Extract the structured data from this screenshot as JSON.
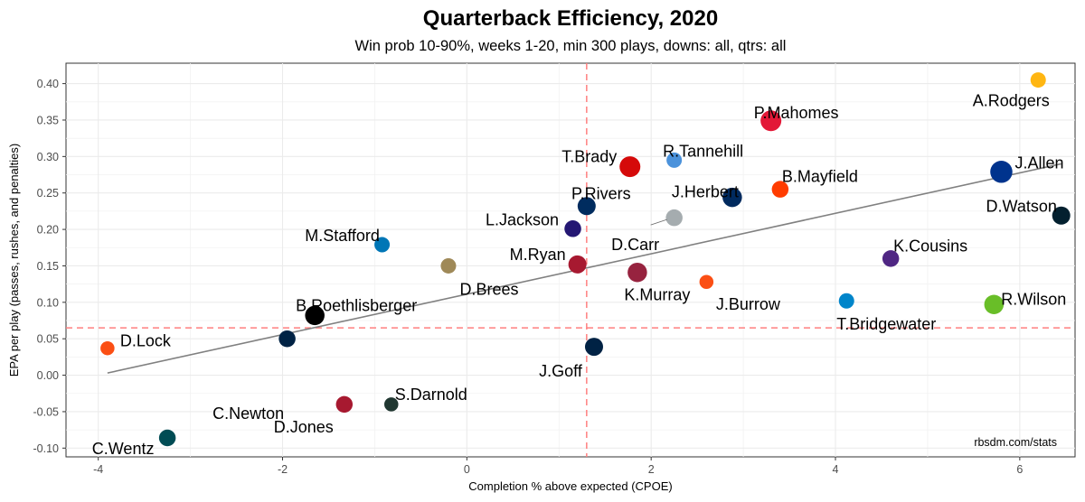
{
  "chart_data": {
    "type": "scatter",
    "title": "Quarterback Efficiency, 2020",
    "subtitle": "Win prob 10-90%, weeks 1-20, min 300 plays, downs: all, qtrs: all",
    "xlabel": "Completion % above expected (CPOE)",
    "ylabel": "EPA per play (passes, rushes, and penalties)",
    "caption": "rbsdm.com/stats",
    "xlim": [
      -4.35,
      6.6
    ],
    "ylim": [
      -0.112,
      0.428
    ],
    "xticks": [
      -4,
      -2,
      0,
      2,
      4,
      6
    ],
    "xtick_labels": [
      "-4",
      "-2",
      "0",
      "2",
      "4",
      "6"
    ],
    "yticks": [
      -0.1,
      -0.05,
      0.0,
      0.05,
      0.1,
      0.15,
      0.2,
      0.25,
      0.3,
      0.35,
      0.4
    ],
    "ytick_labels": [
      "-0.10",
      "-0.05",
      "0.00",
      "0.05",
      "0.10",
      "0.15",
      "0.20",
      "0.25",
      "0.30",
      "0.35",
      "0.40"
    ],
    "mean_x": 1.3,
    "mean_y": 0.065,
    "trend_line": {
      "x1": -3.9,
      "y1": 0.003,
      "x2": 6.45,
      "y2": 0.29
    },
    "points": [
      {
        "name": "A.Rodgers",
        "x": 6.2,
        "y": 0.405,
        "size": 6,
        "color": "#FFB612"
      },
      {
        "name": "P.Mahomes",
        "x": 3.3,
        "y": 0.349,
        "size": 10,
        "color": "#E31837"
      },
      {
        "name": "R.Tannehill",
        "x": 2.25,
        "y": 0.295,
        "size": 6,
        "color": "#4B92DB"
      },
      {
        "name": "T.Brady",
        "x": 1.77,
        "y": 0.286,
        "size": 10,
        "color": "#D50A0A"
      },
      {
        "name": "J.Allen",
        "x": 5.8,
        "y": 0.279,
        "size": 11,
        "color": "#00338D"
      },
      {
        "name": "B.Mayfield",
        "x": 3.4,
        "y": 0.255,
        "size": 7,
        "color": "#FF3C00"
      },
      {
        "name": "J.Herbert",
        "x": 2.88,
        "y": 0.244,
        "size": 9,
        "color": "#002A5E"
      },
      {
        "name": "P.Rivers",
        "x": 1.3,
        "y": 0.232,
        "size": 8,
        "color": "#002C5F"
      },
      {
        "name": "D.Watson",
        "x": 6.45,
        "y": 0.219,
        "size": 8,
        "color": "#03202F"
      },
      {
        "name": "D.Carr",
        "x": 2.25,
        "y": 0.216,
        "size": 7,
        "color": "#A5ACAF"
      },
      {
        "name": "L.Jackson",
        "x": 1.15,
        "y": 0.201,
        "size": 7,
        "color": "#241773"
      },
      {
        "name": "M.Stafford",
        "x": -0.92,
        "y": 0.179,
        "size": 6,
        "color": "#0076B6"
      },
      {
        "name": "K.Cousins",
        "x": 4.6,
        "y": 0.16,
        "size": 7,
        "color": "#4F2683"
      },
      {
        "name": "M.Ryan",
        "x": 1.2,
        "y": 0.152,
        "size": 8,
        "color": "#A71930"
      },
      {
        "name": "D.Brees",
        "x": -0.2,
        "y": 0.15,
        "size": 6,
        "color": "#9F8958"
      },
      {
        "name": "K.Murray",
        "x": 1.85,
        "y": 0.141,
        "size": 9,
        "color": "#97233F"
      },
      {
        "name": "J.Burrow",
        "x": 2.6,
        "y": 0.128,
        "size": 5,
        "color": "#FB4F14"
      },
      {
        "name": "T.Bridgewater",
        "x": 4.12,
        "y": 0.102,
        "size": 6,
        "color": "#0085CA"
      },
      {
        "name": "R.Wilson",
        "x": 5.72,
        "y": 0.097,
        "size": 9,
        "color": "#69BE28"
      },
      {
        "name": "B.Roethlisberger",
        "x": -1.65,
        "y": 0.082,
        "size": 9,
        "color": "#000000"
      },
      {
        "name": "C.Newton",
        "x": -1.95,
        "y": 0.05,
        "size": 7,
        "color": "#002244"
      },
      {
        "name": "J.Goff",
        "x": 1.38,
        "y": 0.039,
        "size": 8,
        "color": "#002244"
      },
      {
        "name": "D.Lock",
        "x": -3.9,
        "y": 0.037,
        "size": 5,
        "color": "#FB4F14"
      },
      {
        "name": "S.Darnold",
        "x": -0.82,
        "y": -0.04,
        "size": 5,
        "color": "#203731"
      },
      {
        "name": "D.Jones",
        "x": -1.33,
        "y": -0.04,
        "size": 7,
        "color": "#A71930"
      },
      {
        "name": "C.Wentz",
        "x": -3.25,
        "y": -0.086,
        "size": 7,
        "color": "#004C54"
      }
    ]
  }
}
